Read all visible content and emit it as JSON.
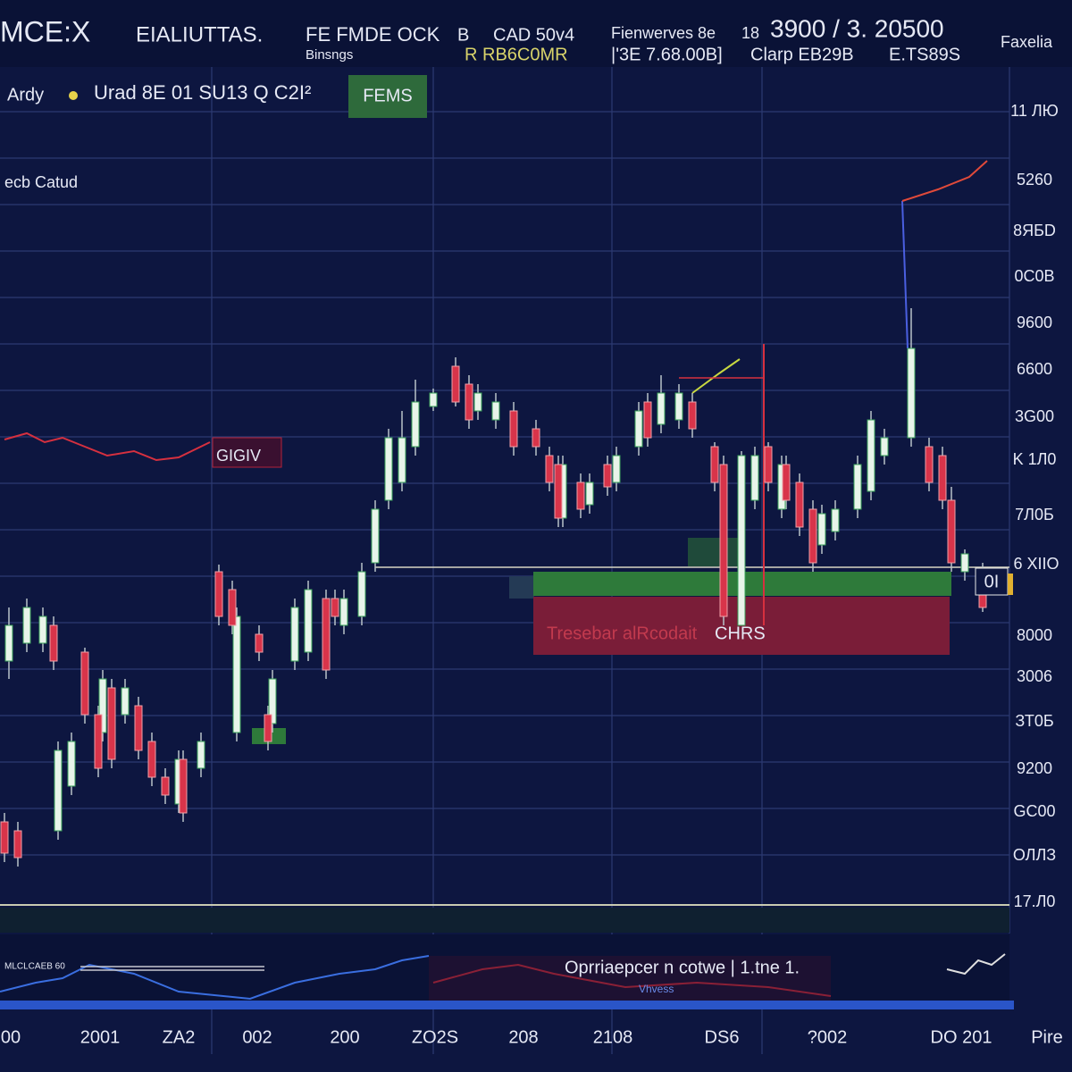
{
  "header": {
    "symbol": "MCE:X",
    "name": "EIALIUTTAS.",
    "field1": "FE FMDE OCK",
    "field1_sub": "Binsngs",
    "field2": "B",
    "field3": "CAD 50v4",
    "field3_sub": "R RB6C0MR",
    "field4": "Fienwerves 8e",
    "field4_sub": "|'3E 7.68.00B]",
    "field5": "18",
    "field6": "3900 / 3. 20500",
    "field6_sub": "Clarp EB29B",
    "field7_sub": "E.TS89S",
    "corner": "Faxelia"
  },
  "toolbar": {
    "label": "Ardy",
    "info": "Urad 8E 01 SU13 Q C2I²",
    "button": "FEMS"
  },
  "chart": {
    "legend": "ecb Catud",
    "tag_left": "GIGIV",
    "zone_label": "Tresebar alRcodait",
    "zone_tag": "CHRS",
    "price_tag": "0I",
    "y_labels": [
      "11 ЛЮ",
      "5260",
      "8ЯБD",
      "0C0B",
      "9600",
      "6600",
      "3G00",
      "K 1Л0",
      "7Л0Б",
      "6 XIIO",
      "8000",
      "3006",
      "ЗТ0Б",
      "9200",
      "GC00",
      "ОЛЛЗ",
      "17.Л0"
    ]
  },
  "indicator": {
    "label": "MLCLCAEB 60",
    "text": "Oprriaepcer n cotwe | 1.tne 1.",
    "sub": "Vhvess"
  },
  "x_labels": [
    "00",
    "2001",
    "ZA2",
    "002",
    "200",
    "ZO2S",
    "208",
    "2108",
    "DS6",
    "?002",
    "DO 201",
    "Pire"
  ]
}
